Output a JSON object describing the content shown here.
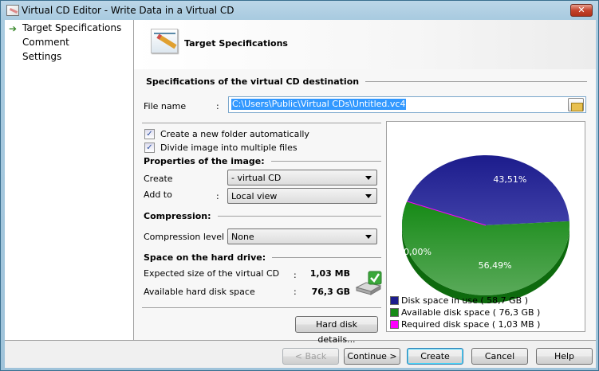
{
  "window": {
    "title": "Virtual CD Editor - Write Data in a Virtual CD",
    "close_label": "✕"
  },
  "sidebar": {
    "items": [
      {
        "label": "Target Specifications",
        "active": true
      },
      {
        "label": "Comment"
      },
      {
        "label": "Settings"
      }
    ]
  },
  "header": {
    "title": "Target Specifications"
  },
  "destination": {
    "section": "Specifications of the virtual CD destination",
    "file_label": "File name",
    "colon": ":",
    "file_value": "C:\\Users\\Public\\Virtual CDs\\Untitled.vc4"
  },
  "options": {
    "new_folder": {
      "label": "Create a new folder automatically",
      "checked": true
    },
    "divide": {
      "label": "Divide image into multiple files",
      "checked": true
    }
  },
  "properties": {
    "section": "Properties of the image:",
    "create_label": "Create",
    "create_value": "- virtual CD",
    "addto_label": "Add to",
    "addto_value": "Local view"
  },
  "compression": {
    "section": "Compression:",
    "level_label": "Compression level :",
    "level_value": "None"
  },
  "space": {
    "section": "Space on the hard drive:",
    "expected_label": "Expected size of the virtual CD",
    "expected_value": "1,03 MB",
    "available_label": "Available hard disk space",
    "available_value": "76,3 GB",
    "details_button": "Hard disk details..."
  },
  "chart_data": {
    "type": "pie",
    "slices": [
      {
        "label": "Disk space in use ( 58,7 GB )",
        "percent_label": "43,51%",
        "value": 43.51,
        "color": "#1c1c8c"
      },
      {
        "label": "Available disk space ( 76,3 GB )",
        "percent_label": "56,49%",
        "value": 56.49,
        "color": "#168a16"
      },
      {
        "label": "Required disk space ( 1,03 MB )",
        "percent_label": "0,00%",
        "value": 0.0,
        "color": "#ff00ff"
      }
    ],
    "style": "3d",
    "legend": "bottom"
  },
  "buttons": {
    "back": "< Back",
    "continue": "Continue >",
    "create": "Create",
    "cancel": "Cancel",
    "help": "Help"
  }
}
